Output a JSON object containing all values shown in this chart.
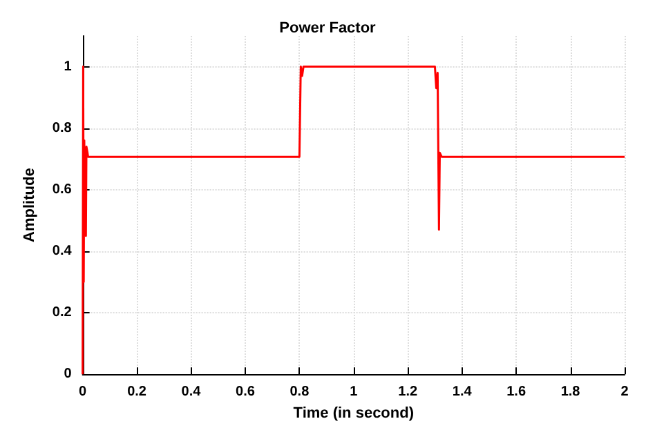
{
  "chart_data": {
    "type": "line",
    "title": "Power Factor",
    "xlabel": "Time (in second)",
    "ylabel": "Amplitude",
    "xlim": [
      0,
      2
    ],
    "xticks": [
      0,
      0.2,
      0.4,
      0.6,
      0.8,
      1,
      1.2,
      1.4,
      1.6,
      1.8,
      2
    ],
    "ylim": [
      0,
      1.1
    ],
    "yticks": [
      0,
      0.2,
      0.4,
      0.6,
      0.8,
      1
    ],
    "grid": true,
    "marker": "none",
    "line_style": "solid",
    "series": [
      {
        "color": "#ff0000",
        "x": [
          0,
          0.002,
          0.004,
          0.006,
          0.008,
          0.012,
          0.014,
          0.018,
          0.02,
          0.8,
          0.805,
          0.81,
          0.815,
          1.3,
          1.305,
          1.31,
          1.315,
          1.318,
          1.325,
          2
        ],
        "values": [
          0,
          1,
          0.3,
          0.76,
          0.6,
          0.45,
          0.74,
          0.72,
          0.707,
          0.707,
          1,
          0.97,
          1,
          1,
          0.93,
          0.98,
          0.47,
          0.72,
          0.707,
          0.707
        ]
      }
    ]
  }
}
